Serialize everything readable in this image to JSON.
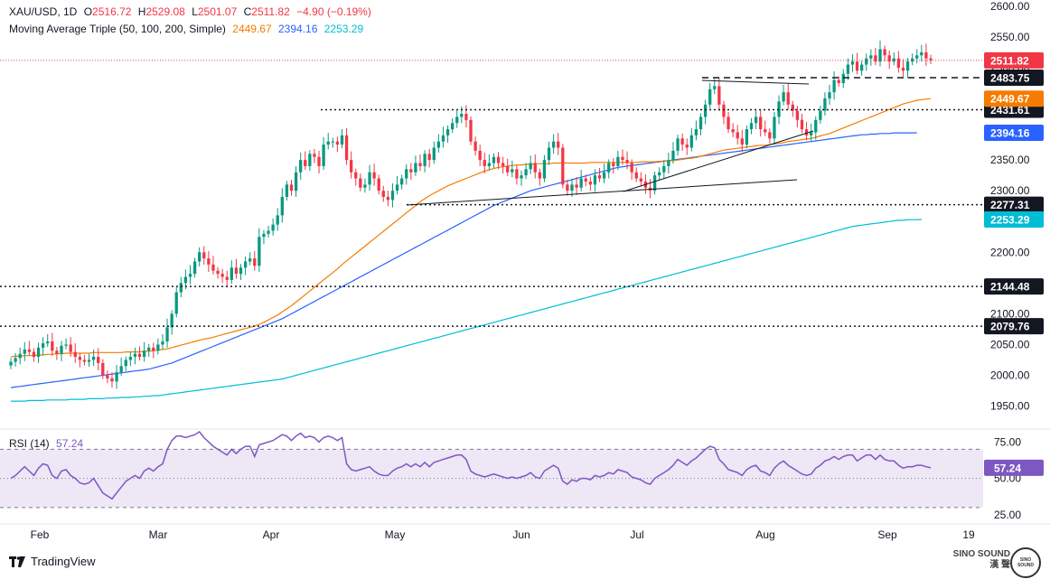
{
  "header": {
    "symbol": "XAU/USD, 1D",
    "open_label": "O",
    "open": "2516.72",
    "high_label": "H",
    "high": "2529.08",
    "low_label": "L",
    "low": "2501.07",
    "close_label": "C",
    "close": "2511.82",
    "change": "−4.90 (−0.19%)",
    "ma_title": "Moving Average Triple (50, 100, 200, Simple)",
    "ma50": "2449.67",
    "ma100": "2394.16",
    "ma200": "2253.29",
    "rsi_title": "RSI (14)",
    "rsi_value": "57.24"
  },
  "footer": {
    "brand": "TradingView"
  },
  "watermark": {
    "badge": "SINO SOUND",
    "line1": "SINO SOUND",
    "line2": "漢 聲"
  },
  "colors": {
    "up": "#089981",
    "down": "#f23645",
    "ma50": "#f57c00",
    "ma100": "#2962ff",
    "ma200": "#00bcd4",
    "rsi": "#7e57c2",
    "rsi_band": "#ede7f6",
    "price_tag": "#f23645",
    "level_tag": "#131722"
  },
  "chart_data": {
    "type": "candlestick",
    "symbol": "XAU/USD",
    "timeframe": "1D",
    "ylim": [
      1920,
      2610
    ],
    "y_ticks": [
      "2600.00",
      "2550.00",
      "2500.00",
      "2450.00",
      "2400.00",
      "2350.00",
      "2300.00",
      "2250.00",
      "2200.00",
      "2150.00",
      "2100.00",
      "2050.00",
      "2000.00",
      "1950.00"
    ],
    "x_ticks": [
      "Feb",
      "Mar",
      "Apr",
      "May",
      "Jun",
      "Jul",
      "Aug",
      "Sep",
      "19"
    ],
    "levels": [
      {
        "value": 2483.75,
        "label": "2483.75",
        "style": "dashed"
      },
      {
        "value": 2431.61,
        "label": "2431.61",
        "style": "dotted"
      },
      {
        "value": 2277.31,
        "label": "2277.31",
        "style": "dotted"
      },
      {
        "value": 2144.48,
        "label": "2144.48",
        "style": "dotted"
      },
      {
        "value": 2079.76,
        "label": "2079.76",
        "style": "dotted"
      }
    ],
    "last_price": {
      "value": 2511.82,
      "label": "2511.82"
    },
    "ma_tags": [
      {
        "value": 2449.67,
        "label": "2449.67",
        "series": "ma50"
      },
      {
        "value": 2394.16,
        "label": "2394.16",
        "series": "ma100"
      },
      {
        "value": 2253.29,
        "label": "2253.29",
        "series": "ma200"
      }
    ],
    "closes": [
      2022,
      2028,
      2035,
      2042,
      2038,
      2030,
      2045,
      2052,
      2055,
      2040,
      2035,
      2048,
      2050,
      2038,
      2030,
      2025,
      2022,
      2025,
      2030,
      2020,
      2000,
      1995,
      1990,
      2005,
      2015,
      2025,
      2030,
      2035,
      2030,
      2040,
      2045,
      2040,
      2050,
      2055,
      2078,
      2100,
      2135,
      2150,
      2160,
      2165,
      2185,
      2200,
      2190,
      2180,
      2170,
      2165,
      2160,
      2155,
      2175,
      2165,
      2175,
      2185,
      2190,
      2178,
      2225,
      2230,
      2235,
      2245,
      2260,
      2290,
      2310,
      2300,
      2330,
      2350,
      2340,
      2360,
      2355,
      2340,
      2375,
      2380,
      2380,
      2375,
      2390,
      2350,
      2330,
      2320,
      2305,
      2310,
      2330,
      2320,
      2300,
      2290,
      2285,
      2300,
      2310,
      2320,
      2335,
      2330,
      2345,
      2340,
      2360,
      2350,
      2370,
      2380,
      2390,
      2400,
      2410,
      2420,
      2425,
      2415,
      2380,
      2365,
      2350,
      2340,
      2345,
      2355,
      2345,
      2340,
      2330,
      2335,
      2320,
      2325,
      2335,
      2345,
      2330,
      2320,
      2350,
      2370,
      2380,
      2370,
      2310,
      2300,
      2310,
      2305,
      2320,
      2315,
      2310,
      2325,
      2320,
      2330,
      2345,
      2340,
      2355,
      2350,
      2345,
      2330,
      2320,
      2315,
      2305,
      2300,
      2325,
      2330,
      2340,
      2350,
      2365,
      2385,
      2375,
      2370,
      2390,
      2400,
      2420,
      2440,
      2465,
      2470,
      2440,
      2420,
      2400,
      2395,
      2385,
      2375,
      2400,
      2410,
      2420,
      2400,
      2395,
      2385,
      2420,
      2445,
      2460,
      2440,
      2430,
      2415,
      2400,
      2390,
      2395,
      2415,
      2430,
      2450,
      2460,
      2480,
      2475,
      2490,
      2505,
      2510,
      2495,
      2505,
      2515,
      2520,
      2510,
      2530,
      2520,
      2510,
      2515,
      2500,
      2495,
      2510,
      2515,
      2520,
      2525,
      2515,
      2512
    ],
    "ma50": [
      2030,
      2031,
      2031,
      2032,
      2032,
      2032,
      2033,
      2033,
      2034,
      2034,
      2035,
      2035,
      2036,
      2036,
      2036,
      2036,
      2036,
      2036,
      2037,
      2037,
      2037,
      2037,
      2037,
      2037,
      2037,
      2038,
      2038,
      2038,
      2038,
      2039,
      2039,
      2040,
      2041,
      2042,
      2043,
      2045,
      2047,
      2049,
      2051,
      2053,
      2055,
      2057,
      2059,
      2060,
      2062,
      2064,
      2066,
      2068,
      2070,
      2072,
      2074,
      2076,
      2078,
      2080,
      2083,
      2086,
      2090,
      2094,
      2098,
      2103,
      2108,
      2113,
      2119,
      2125,
      2131,
      2137,
      2143,
      2149,
      2155,
      2161,
      2167,
      2173,
      2180,
      2186,
      2192,
      2198,
      2204,
      2210,
      2216,
      2222,
      2228,
      2234,
      2240,
      2246,
      2252,
      2258,
      2264,
      2270,
      2276,
      2282,
      2287,
      2292,
      2296,
      2300,
      2304,
      2308,
      2311,
      2314,
      2317,
      2320,
      2323,
      2326,
      2329,
      2332,
      2334,
      2336,
      2338,
      2339,
      2340,
      2341,
      2342,
      2342,
      2343,
      2343,
      2344,
      2344,
      2344,
      2344,
      2345,
      2345,
      2345,
      2345,
      2345,
      2345,
      2345,
      2345,
      2346,
      2346,
      2346,
      2346,
      2346,
      2346,
      2346,
      2346,
      2346,
      2346,
      2346,
      2347,
      2347,
      2347,
      2347,
      2348,
      2348,
      2349,
      2349,
      2350,
      2351,
      2352,
      2353,
      2354,
      2356,
      2358,
      2360,
      2362,
      2364,
      2366,
      2367,
      2368,
      2369,
      2370,
      2371,
      2372,
      2373,
      2374,
      2374,
      2375,
      2376,
      2377,
      2378,
      2380,
      2381,
      2382,
      2383,
      2384,
      2385,
      2387,
      2389,
      2391,
      2393,
      2396,
      2399,
      2402,
      2405,
      2408,
      2411,
      2414,
      2417,
      2420,
      2423,
      2426,
      2429,
      2432,
      2435,
      2438,
      2441,
      2443,
      2445,
      2447,
      2448,
      2449,
      2449.67
    ],
    "ma100": [
      1980,
      1981,
      1982,
      1983,
      1984,
      1985,
      1986,
      1987,
      1988,
      1989,
      1990,
      1991,
      1992,
      1993,
      1994,
      1995,
      1996,
      1997,
      1998,
      1999,
      2000,
      2001,
      2002,
      2003,
      2004,
      2005,
      2006,
      2007,
      2008,
      2009,
      2010,
      2012,
      2014,
      2016,
      2018,
      2020,
      2023,
      2026,
      2029,
      2032,
      2035,
      2038,
      2041,
      2044,
      2047,
      2050,
      2053,
      2056,
      2059,
      2062,
      2065,
      2068,
      2071,
      2074,
      2077,
      2080,
      2083,
      2086,
      2089,
      2092,
      2096,
      2100,
      2104,
      2108,
      2112,
      2116,
      2120,
      2124,
      2128,
      2132,
      2136,
      2140,
      2144,
      2148,
      2152,
      2156,
      2160,
      2164,
      2168,
      2172,
      2176,
      2180,
      2184,
      2188,
      2192,
      2196,
      2200,
      2204,
      2208,
      2212,
      2216,
      2220,
      2224,
      2228,
      2232,
      2236,
      2240,
      2244,
      2248,
      2252,
      2256,
      2260,
      2264,
      2268,
      2272,
      2276,
      2279,
      2282,
      2285,
      2288,
      2291,
      2294,
      2297,
      2300,
      2302,
      2304,
      2306,
      2308,
      2310,
      2312,
      2314,
      2316,
      2318,
      2320,
      2322,
      2324,
      2326,
      2328,
      2330,
      2332,
      2334,
      2336,
      2338,
      2339,
      2340,
      2341,
      2342,
      2343,
      2344,
      2345,
      2346,
      2347,
      2348,
      2349,
      2350,
      2351,
      2352,
      2353,
      2354,
      2355,
      2356,
      2357,
      2358,
      2359,
      2360,
      2361,
      2362,
      2363,
      2364,
      2365,
      2366,
      2367,
      2368,
      2369,
      2370,
      2371,
      2372,
      2373,
      2374,
      2375,
      2376,
      2377,
      2378,
      2379,
      2380,
      2381,
      2382,
      2383,
      2384,
      2385,
      2386,
      2387,
      2388,
      2389,
      2390,
      2391,
      2391,
      2392,
      2392,
      2393,
      2393,
      2393,
      2394,
      2394,
      2394,
      2394,
      2394,
      2394.16
    ],
    "ma200": [
      1958,
      1958,
      1958,
      1958,
      1959,
      1959,
      1959,
      1959,
      1960,
      1960,
      1960,
      1960,
      1960,
      1961,
      1961,
      1961,
      1961,
      1962,
      1962,
      1962,
      1962,
      1963,
      1963,
      1963,
      1964,
      1964,
      1964,
      1965,
      1965,
      1966,
      1966,
      1967,
      1967,
      1968,
      1969,
      1970,
      1971,
      1972,
      1973,
      1974,
      1975,
      1976,
      1977,
      1978,
      1979,
      1980,
      1981,
      1982,
      1983,
      1984,
      1985,
      1986,
      1987,
      1988,
      1989,
      1990,
      1991,
      1992,
      1993,
      1994,
      1996,
      1998,
      2000,
      2002,
      2004,
      2006,
      2008,
      2010,
      2012,
      2014,
      2016,
      2018,
      2020,
      2022,
      2024,
      2026,
      2028,
      2030,
      2032,
      2034,
      2036,
      2038,
      2040,
      2042,
      2044,
      2046,
      2048,
      2050,
      2052,
      2054,
      2056,
      2058,
      2060,
      2062,
      2064,
      2066,
      2068,
      2070,
      2072,
      2074,
      2076,
      2078,
      2080,
      2082,
      2084,
      2086,
      2088,
      2090,
      2092,
      2094,
      2096,
      2098,
      2100,
      2102,
      2104,
      2106,
      2108,
      2110,
      2112,
      2114,
      2116,
      2118,
      2120,
      2122,
      2124,
      2126,
      2128,
      2130,
      2132,
      2134,
      2136,
      2138,
      2140,
      2142,
      2144,
      2146,
      2148,
      2150,
      2152,
      2154,
      2156,
      2158,
      2160,
      2162,
      2164,
      2166,
      2168,
      2170,
      2172,
      2174,
      2176,
      2178,
      2180,
      2182,
      2184,
      2186,
      2188,
      2190,
      2192,
      2194,
      2196,
      2198,
      2200,
      2202,
      2204,
      2206,
      2208,
      2210,
      2212,
      2214,
      2216,
      2218,
      2220,
      2222,
      2224,
      2226,
      2228,
      2230,
      2232,
      2234,
      2236,
      2238,
      2240,
      2242,
      2243,
      2244,
      2245,
      2246,
      2247,
      2248,
      2249,
      2250,
      2251,
      2252,
      2252,
      2253,
      2253,
      2253,
      2253.29
    ],
    "rsi": {
      "ylim": [
        20,
        82
      ],
      "ticks": [
        "75.00",
        "50.00",
        "25.00"
      ],
      "band": [
        30,
        70
      ],
      "value_label": "57.24",
      "values": [
        50,
        52,
        55,
        58,
        55,
        52,
        57,
        60,
        59,
        52,
        50,
        55,
        56,
        52,
        50,
        47,
        46,
        47,
        50,
        45,
        40,
        38,
        36,
        40,
        44,
        48,
        50,
        52,
        50,
        55,
        57,
        55,
        58,
        60,
        70,
        76,
        79,
        79,
        78,
        79,
        80,
        82,
        78,
        75,
        72,
        70,
        68,
        66,
        70,
        67,
        70,
        72,
        72,
        65,
        73,
        74,
        75,
        76,
        78,
        80,
        79,
        76,
        79,
        81,
        78,
        79,
        78,
        75,
        78,
        79,
        78,
        76,
        78,
        60,
        56,
        55,
        56,
        57,
        58,
        55,
        53,
        52,
        52,
        55,
        57,
        58,
        60,
        58,
        60,
        58,
        61,
        58,
        61,
        62,
        63,
        64,
        65,
        66,
        66,
        63,
        55,
        53,
        52,
        51,
        52,
        53,
        52,
        51,
        50,
        51,
        50,
        51,
        52,
        54,
        51,
        50,
        55,
        57,
        59,
        57,
        48,
        46,
        49,
        48,
        50,
        50,
        49,
        52,
        51,
        52,
        54,
        53,
        56,
        55,
        54,
        51,
        50,
        49,
        47,
        46,
        50,
        52,
        54,
        56,
        59,
        63,
        61,
        59,
        62,
        64,
        67,
        70,
        72,
        71,
        63,
        60,
        56,
        55,
        54,
        52,
        56,
        58,
        59,
        55,
        54,
        52,
        57,
        60,
        62,
        59,
        57,
        55,
        53,
        52,
        53,
        57,
        59,
        62,
        63,
        65,
        63,
        65,
        66,
        66,
        62,
        64,
        66,
        66,
        63,
        66,
        63,
        62,
        62,
        59,
        57,
        58,
        58,
        59,
        59,
        58,
        57.24
      ]
    }
  }
}
